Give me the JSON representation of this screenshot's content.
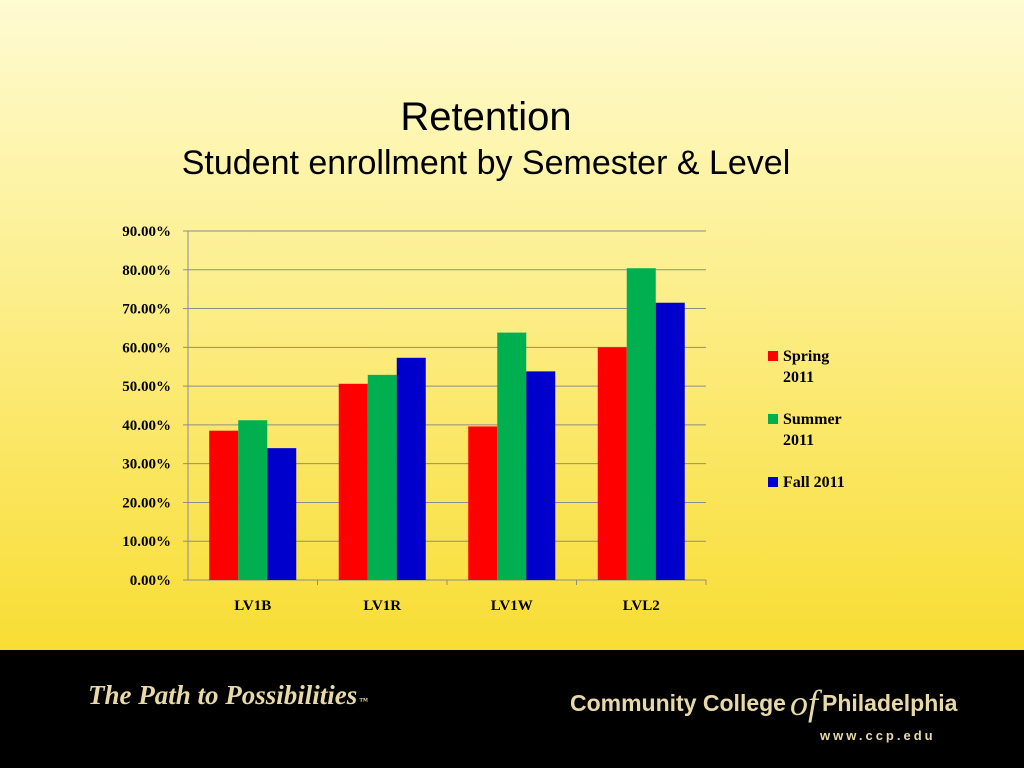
{
  "slide": {
    "title": "Retention",
    "subtitle": "Student enrollment by Semester & Level"
  },
  "footer": {
    "tagline": "The Path to Possibilities",
    "tagline_mark": "™",
    "college_pre": "Community College",
    "college_of": "of",
    "college_post": "Philadelphia",
    "url": "www.ccp.edu"
  },
  "chart_data": {
    "type": "bar",
    "categories": [
      "LV1B",
      "LV1R",
      "LV1W",
      "LVL2"
    ],
    "series": [
      {
        "name": "Spring 2011",
        "legend_lines": [
          "Spring",
          "2011"
        ],
        "color": "#ff0000",
        "values": [
          38.5,
          50.6,
          39.6,
          60.0
        ]
      },
      {
        "name": "Summer 2011",
        "legend_lines": [
          "Summer",
          "2011"
        ],
        "color": "#00b050",
        "values": [
          41.2,
          52.9,
          63.8,
          80.4
        ]
      },
      {
        "name": "Fall 2011",
        "legend_lines": [
          "Fall 2011"
        ],
        "color": "#0000cc",
        "values": [
          34.0,
          57.3,
          53.8,
          71.5
        ]
      }
    ],
    "ylim": [
      0,
      90
    ],
    "y_ticks": [
      "0.00%",
      "10.00%",
      "20.00%",
      "30.00%",
      "40.00%",
      "50.00%",
      "60.00%",
      "70.00%",
      "80.00%",
      "90.00%"
    ],
    "grid": true,
    "legend_position": "right"
  }
}
